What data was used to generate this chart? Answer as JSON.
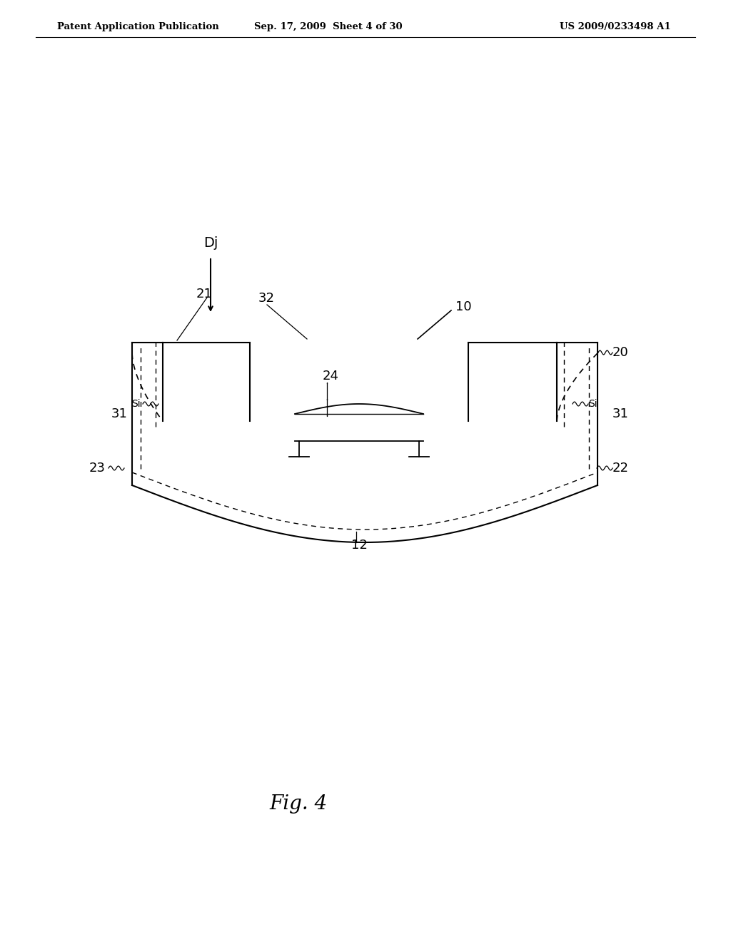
{
  "bg_color": "#ffffff",
  "line_color": "#000000",
  "header_left": "Patent Application Publication",
  "header_mid": "Sep. 17, 2009  Sheet 4 of 30",
  "header_right": "US 2009/0233498 A1",
  "fig_label": "Fig. 4"
}
